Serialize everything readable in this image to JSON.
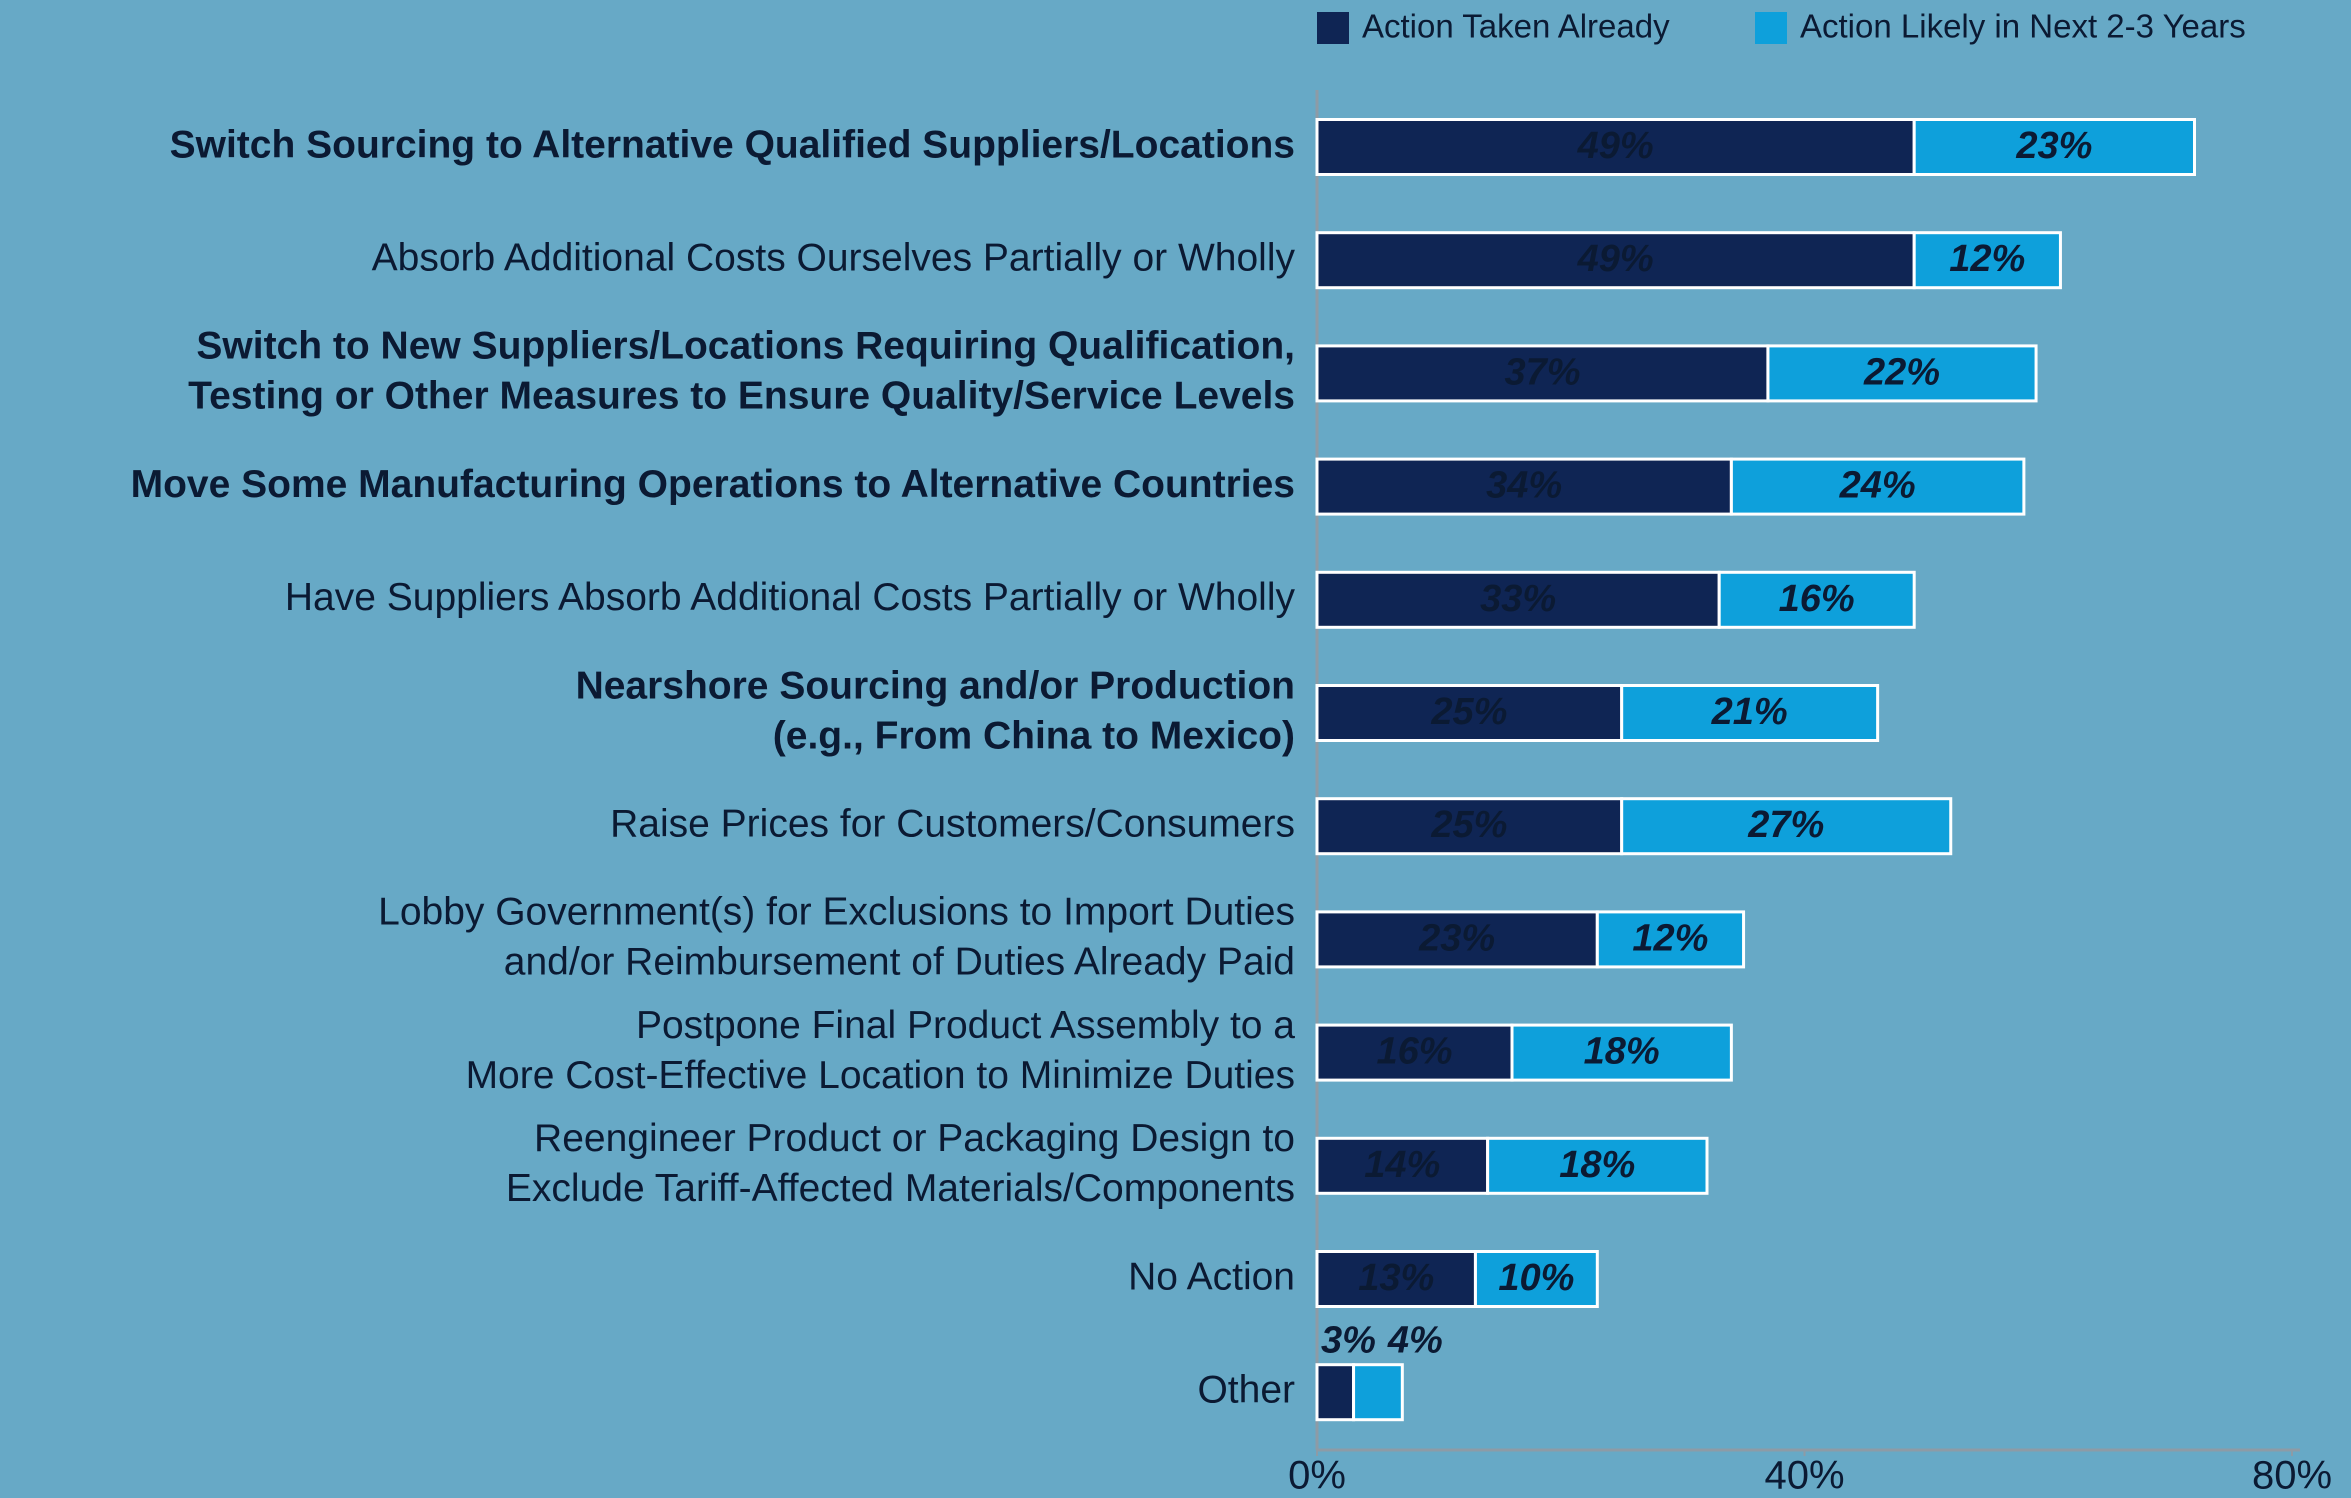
{
  "chart_data": {
    "type": "stacked-bar-horizontal",
    "categories": [
      [
        "Switch Sourcing to Alternative Qualified Suppliers/Locations"
      ],
      [
        "Absorb Additional Costs Ourselves Partially or Wholly"
      ],
      [
        "Switch to New Suppliers/Locations Requiring Qualification,",
        "Testing or Other Measures to Ensure Quality/Service Levels"
      ],
      [
        "Move Some Manufacturing Operations to Alternative Countries"
      ],
      [
        "Have Suppliers Absorb Additional Costs Partially or Wholly"
      ],
      [
        "Nearshore Sourcing and/or Production",
        "(e.g., From China to Mexico)"
      ],
      [
        "Raise Prices for Customers/Consumers"
      ],
      [
        "Lobby Government(s) for Exclusions to Import Duties",
        "and/or Reimbursement of Duties Already Paid"
      ],
      [
        "Postpone Final Product Assembly to a",
        "More Cost-Effective Location to Minimize Duties"
      ],
      [
        "Reengineer Product or Packaging Design to",
        "Exclude Tariff-Affected Materials/Components"
      ],
      [
        "No Action"
      ],
      [
        "Other"
      ]
    ],
    "bold": [
      true,
      false,
      true,
      true,
      false,
      true,
      false,
      false,
      false,
      false,
      false,
      false
    ],
    "series": [
      {
        "name": "Action Taken Already",
        "color": "#0f2554",
        "label_color": "#ffffff",
        "values": [
          49,
          49,
          37,
          34,
          33,
          25,
          25,
          23,
          16,
          14,
          13,
          3
        ],
        "value_labels": [
          "49%",
          "49%",
          "37%",
          "34%",
          "33%",
          "25%",
          "25%",
          "23%",
          "16%",
          "14%",
          "13%",
          "3%"
        ]
      },
      {
        "name": "Action Likely in Next 2-3 Years",
        "color": "#0ea0db",
        "label_color": "#0b1a33",
        "values": [
          23,
          12,
          22,
          24,
          16,
          21,
          27,
          12,
          18,
          18,
          10,
          4
        ],
        "value_labels": [
          "23%",
          "12%",
          "22%",
          "24%",
          "16%",
          "21%",
          "27%",
          "12%",
          "18%",
          "18%",
          "10%",
          "4%"
        ]
      }
    ],
    "xlim": [
      0,
      80
    ],
    "xticks": [
      {
        "value": 0,
        "label": "0%"
      },
      {
        "value": 40,
        "label": "40%"
      },
      {
        "value": 80,
        "label": "80%"
      }
    ]
  }
}
